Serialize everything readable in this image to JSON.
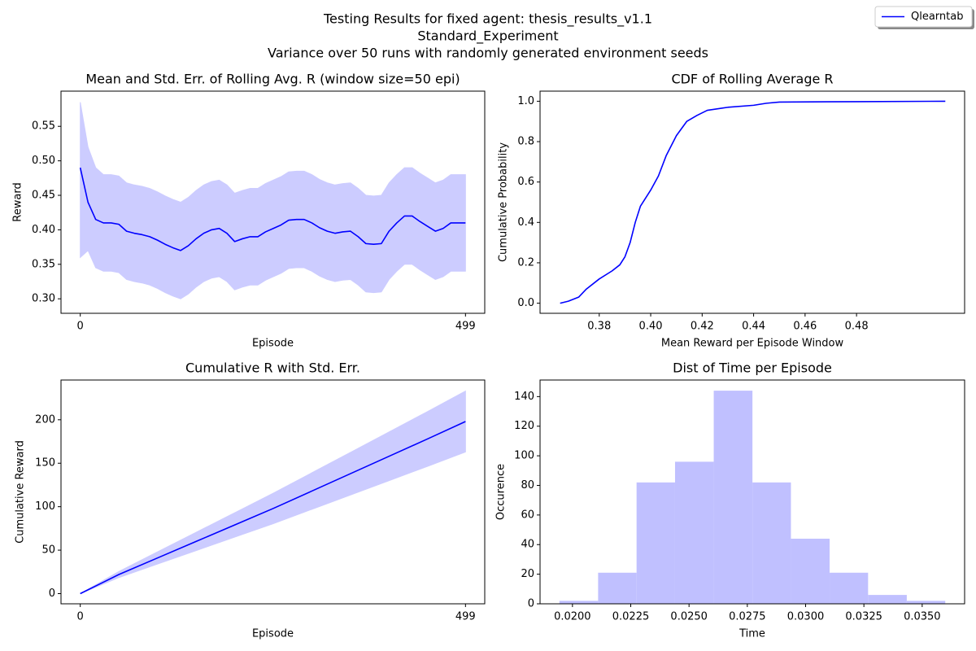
{
  "figure": {
    "title_lines": [
      "Testing Results for fixed agent: thesis_results_v1.1",
      "Standard_Experiment",
      "Variance over 50 runs with randomly generated environment seeds"
    ],
    "legend": {
      "name": "Qlearntab",
      "color": "#0000ff",
      "position": "upper right"
    }
  },
  "chart_data": [
    {
      "type": "line",
      "title": "Mean and Std. Err. of Rolling Avg. R (window size=50 epi)",
      "xlabel": "Episode",
      "ylabel": "Reward",
      "x": [
        0,
        10,
        20,
        30,
        40,
        50,
        60,
        70,
        80,
        90,
        100,
        110,
        120,
        130,
        140,
        150,
        160,
        170,
        180,
        190,
        200,
        210,
        220,
        230,
        240,
        250,
        260,
        270,
        280,
        290,
        300,
        310,
        320,
        330,
        340,
        350,
        360,
        370,
        380,
        390,
        400,
        410,
        420,
        430,
        440,
        450,
        460,
        470,
        480,
        490,
        499
      ],
      "series": [
        {
          "color": "#0000ff",
          "values": [
            0.49,
            0.44,
            0.415,
            0.41,
            0.41,
            0.408,
            0.398,
            0.395,
            0.393,
            0.39,
            0.385,
            0.379,
            0.374,
            0.37,
            0.377,
            0.387,
            0.395,
            0.4,
            0.402,
            0.395,
            0.383,
            0.387,
            0.39,
            0.39,
            0.397,
            0.402,
            0.407,
            0.414,
            0.415,
            0.415,
            0.41,
            0.403,
            0.398,
            0.395,
            0.397,
            0.398,
            0.39,
            0.38,
            0.379,
            0.38,
            0.398,
            0.41,
            0.42,
            0.42,
            0.412,
            0.405,
            0.398,
            0.402,
            0.41,
            0.41,
            0.41
          ]
        }
      ],
      "band": {
        "color": "#ccccff",
        "upper": [
          0.585,
          0.52,
          0.49,
          0.48,
          0.48,
          0.478,
          0.468,
          0.465,
          0.463,
          0.46,
          0.455,
          0.449,
          0.444,
          0.44,
          0.447,
          0.457,
          0.465,
          0.47,
          0.472,
          0.465,
          0.453,
          0.457,
          0.46,
          0.46,
          0.467,
          0.472,
          0.477,
          0.484,
          0.485,
          0.485,
          0.48,
          0.473,
          0.468,
          0.465,
          0.467,
          0.468,
          0.46,
          0.45,
          0.449,
          0.45,
          0.468,
          0.48,
          0.49,
          0.49,
          0.482,
          0.475,
          0.468,
          0.472,
          0.48,
          0.48,
          0.48
        ],
        "lower": [
          0.36,
          0.37,
          0.345,
          0.34,
          0.34,
          0.338,
          0.328,
          0.325,
          0.323,
          0.32,
          0.315,
          0.309,
          0.304,
          0.3,
          0.307,
          0.317,
          0.325,
          0.33,
          0.332,
          0.325,
          0.313,
          0.317,
          0.32,
          0.32,
          0.327,
          0.332,
          0.337,
          0.344,
          0.345,
          0.345,
          0.34,
          0.333,
          0.328,
          0.325,
          0.327,
          0.328,
          0.32,
          0.31,
          0.309,
          0.31,
          0.328,
          0.34,
          0.35,
          0.35,
          0.342,
          0.335,
          0.328,
          0.332,
          0.34,
          0.34,
          0.34
        ]
      },
      "xlim": [
        -24.95,
        523.95
      ],
      "ylim": [
        0.279,
        0.601
      ],
      "xticks": [
        0,
        499
      ],
      "yticks": [
        {
          "value": 0.3,
          "label": "0.30"
        },
        0.35,
        {
          "value": 0.4,
          "label": "0.40"
        },
        0.45,
        {
          "value": 0.5,
          "label": "0.50"
        },
        0.55
      ]
    },
    {
      "type": "line",
      "title": "CDF of Rolling Average R",
      "xlabel": "Mean Reward per Episode Window",
      "ylabel": "Cumulative Probability",
      "x": [
        0.3648,
        0.368,
        0.372,
        0.375,
        0.38,
        0.385,
        0.388,
        0.39,
        0.392,
        0.394,
        0.396,
        0.4,
        0.403,
        0.406,
        0.41,
        0.414,
        0.418,
        0.422,
        0.43,
        0.44,
        0.445,
        0.45,
        0.48,
        0.5145
      ],
      "series": [
        {
          "color": "#0000ff",
          "values": [
            0,
            0.01,
            0.03,
            0.07,
            0.12,
            0.16,
            0.19,
            0.23,
            0.3,
            0.4,
            0.48,
            0.56,
            0.63,
            0.73,
            0.83,
            0.9,
            0.93,
            0.955,
            0.97,
            0.98,
            0.99,
            0.996,
            0.998,
            1.0
          ]
        }
      ],
      "xlim": [
        0.357,
        0.522
      ],
      "ylim": [
        -0.05,
        1.05
      ],
      "xticks": [
        0.38,
        {
          "value": 0.4,
          "label": "0.40"
        },
        0.42,
        0.44,
        0.46,
        0.48
      ],
      "yticks": [
        {
          "value": 0,
          "label": "0.0"
        },
        0.2,
        0.4,
        0.6,
        0.8,
        {
          "value": 1,
          "label": "1.0"
        }
      ]
    },
    {
      "type": "line",
      "title": "Cumulative R with Std. Err.",
      "xlabel": "Episode",
      "ylabel": "Cumulative Reward",
      "x": [
        0,
        50,
        100,
        150,
        200,
        250,
        300,
        350,
        400,
        450,
        499
      ],
      "series": [
        {
          "color": "#0000ff",
          "values": [
            0,
            22,
            41,
            60,
            79,
            98,
            118,
            138,
            158,
            178,
            198
          ]
        }
      ],
      "band": {
        "color": "#ccccff",
        "upper": [
          0,
          25.5,
          48,
          70.5,
          93,
          115.5,
          139,
          162.5,
          186,
          209.5,
          233
        ],
        "lower": [
          0,
          18.5,
          34,
          49.5,
          65,
          80.5,
          97,
          113.5,
          130,
          146.5,
          163
        ]
      },
      "xlim": [
        -24.95,
        523.95
      ],
      "ylim": [
        -11.7,
        245.7
      ],
      "xticks": [
        0,
        499
      ],
      "yticks": [
        0,
        50,
        100,
        150,
        200
      ]
    },
    {
      "type": "histogram",
      "title": "Dist of Time per Episode",
      "xlabel": "Time",
      "ylabel": "Occurence",
      "color": "#c0c0ff",
      "bins": [
        0.01944,
        0.0211,
        0.02275,
        0.0244,
        0.02606,
        0.02772,
        0.02937,
        0.03103,
        0.03268,
        0.03434,
        0.03599
      ],
      "values": [
        2,
        21,
        82,
        96,
        144,
        82,
        44,
        21,
        6,
        2
      ],
      "xlim": [
        0.01861,
        0.03682
      ],
      "ylim": [
        0,
        151.2
      ],
      "xticks": [
        {
          "value": 0.02,
          "label": "0.0200"
        },
        0.0225,
        {
          "value": 0.025,
          "label": "0.0250"
        },
        0.0275,
        {
          "value": 0.03,
          "label": "0.0300"
        },
        0.0325,
        {
          "value": 0.035,
          "label": "0.0350"
        }
      ],
      "yticks": [
        0,
        20,
        40,
        60,
        80,
        100,
        120,
        140
      ]
    }
  ]
}
